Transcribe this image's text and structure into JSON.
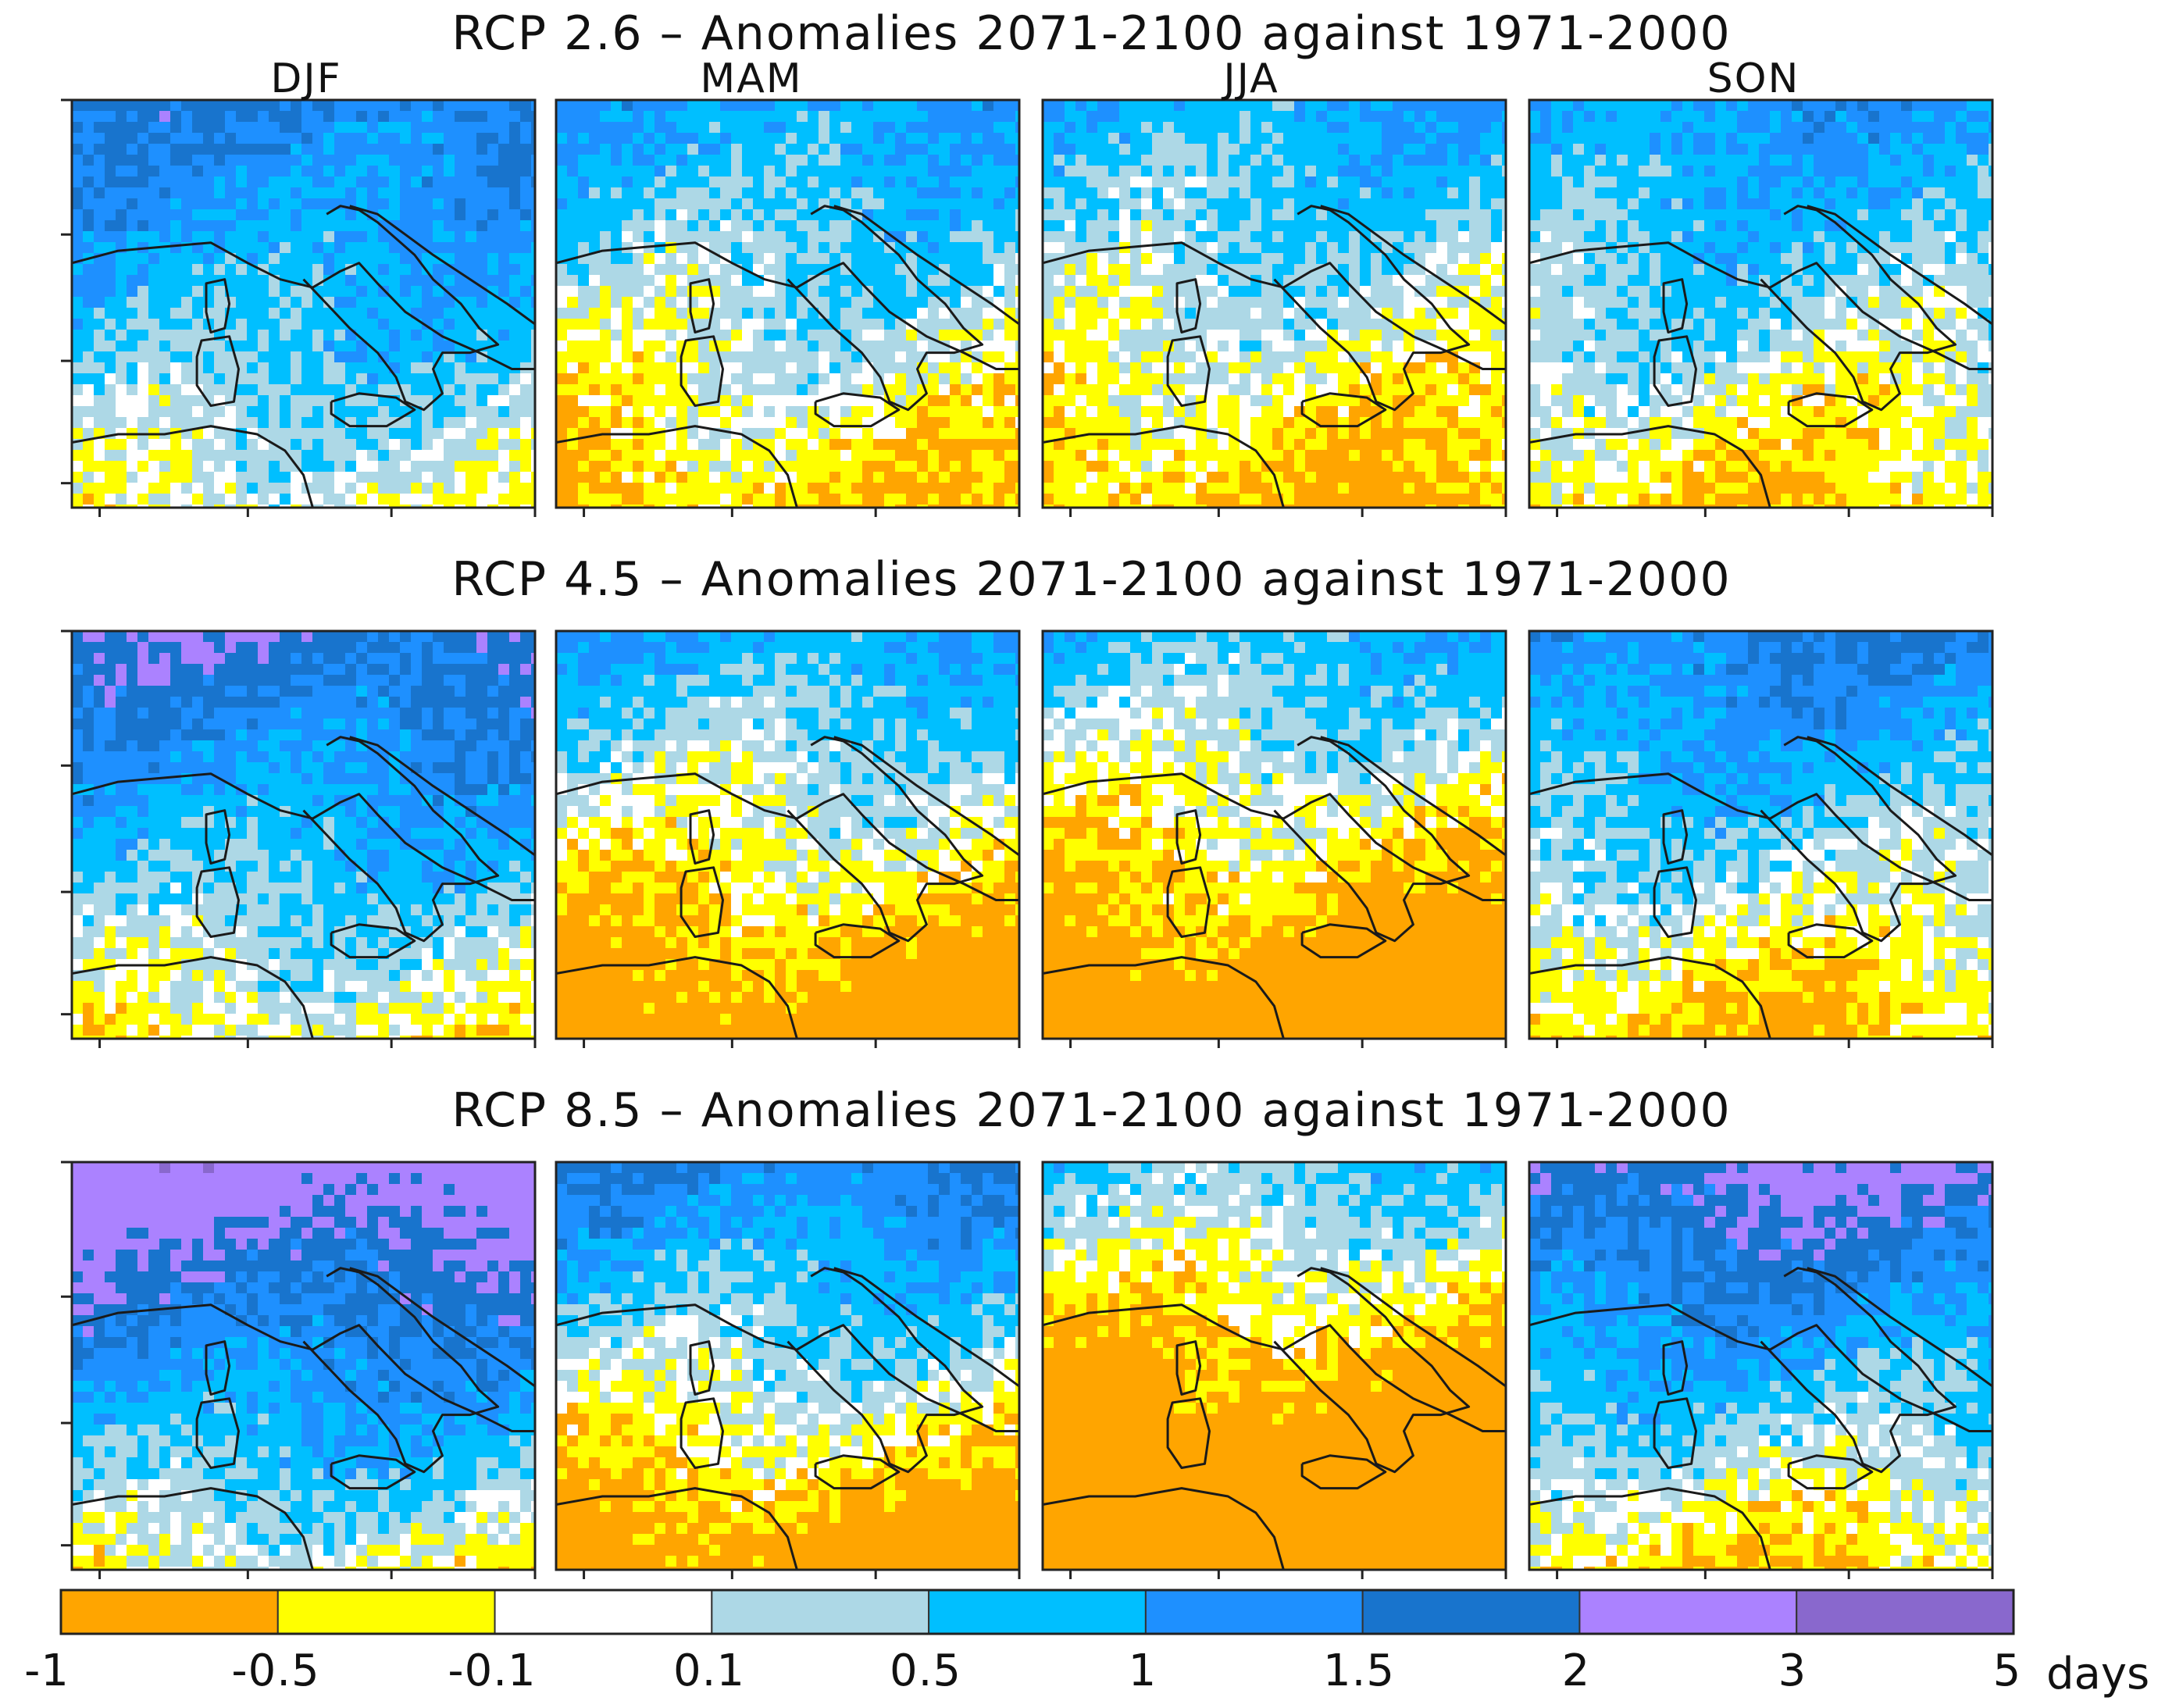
{
  "chart_data": {
    "type": "heatmap",
    "description_rows": [
      {
        "id": "rcp26",
        "title": "RCP 2.6 – Anomalies 2071-2100 against 1971-2000",
        "dominant": [
          0.8,
          0.3,
          0.2,
          0.4
        ]
      },
      {
        "id": "rcp45",
        "title": "RCP 4.5 – Anomalies 2071-2100 against 1971-2000",
        "dominant": [
          0.9,
          0.0,
          -0.2,
          0.5
        ]
      },
      {
        "id": "rcp85",
        "title": "RCP 8.5 – Anomalies 2071-2100 against 1971-2000",
        "dominant": [
          1.3,
          0.3,
          -0.6,
          0.9
        ]
      }
    ],
    "seasons": [
      "DJF",
      "MAM",
      "JJA",
      "SON"
    ],
    "colorbar": {
      "boundaries": [
        "-1",
        "-0.5",
        "-0.1",
        "0.1",
        "0.5",
        "1",
        "1.5",
        "2",
        "3",
        "5"
      ],
      "unit": "days",
      "colors": [
        "#FFA500",
        "#FFFF00",
        "#FFFFFF",
        "#ADD8E6",
        "#00BFFF",
        "#1E90FF",
        "#1874CD",
        "#AB82FF",
        "#8968CD"
      ]
    }
  },
  "colors": {
    "coastline": "#1a1a1a",
    "frame": "#222222",
    "olive_yellow": "#CDCD00",
    "gray": "#A9A9A9"
  }
}
